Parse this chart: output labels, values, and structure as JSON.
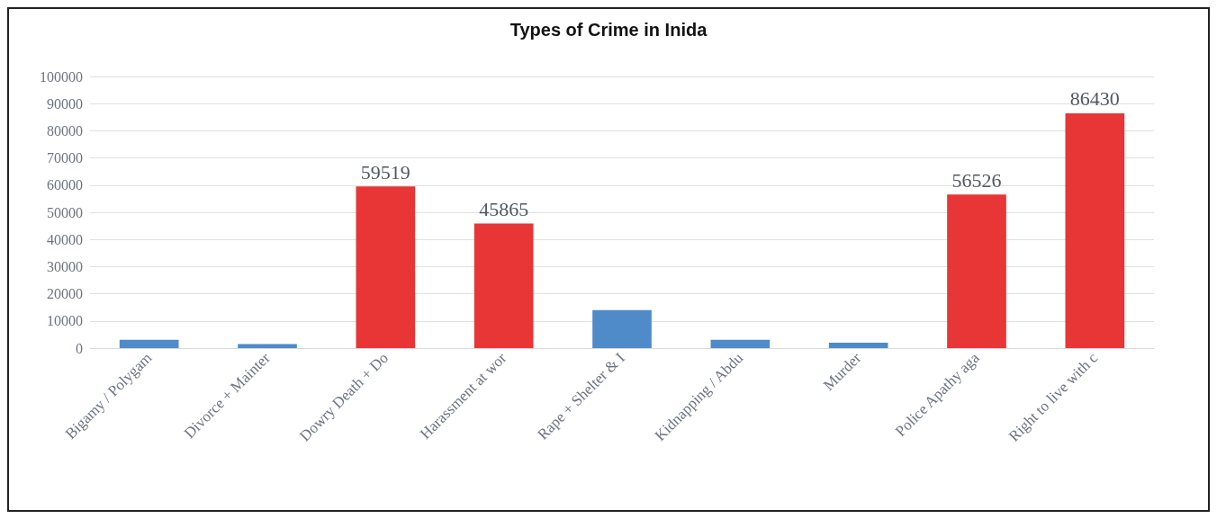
{
  "chart_data": {
    "type": "bar",
    "title": "Types of Crime in Inida",
    "categories": [
      "Bigamy / Polygam",
      "Divorce + Mainter",
      "Dowry Death + Do",
      "Harassment at wor",
      "Rape + Shelter & I",
      "Kidnapping / Abdu",
      "Murder",
      "Police Apathy aga",
      "Right to live with c"
    ],
    "values": [
      3100,
      1500,
      59519,
      45865,
      14000,
      3100,
      2000,
      56526,
      86430
    ],
    "colors": [
      "#4f8bc9",
      "#4f8bc9",
      "#e83535",
      "#e83535",
      "#4f8bc9",
      "#4f8bc9",
      "#4f8bc9",
      "#e83535",
      "#e83535"
    ],
    "value_labels": [
      null,
      null,
      "59519",
      "45865",
      null,
      null,
      null,
      "56526",
      "86430"
    ],
    "ylim": [
      0,
      100000
    ],
    "yticks": [
      0,
      10000,
      20000,
      30000,
      40000,
      50000,
      60000,
      70000,
      80000,
      90000,
      100000
    ],
    "grid": "y"
  }
}
